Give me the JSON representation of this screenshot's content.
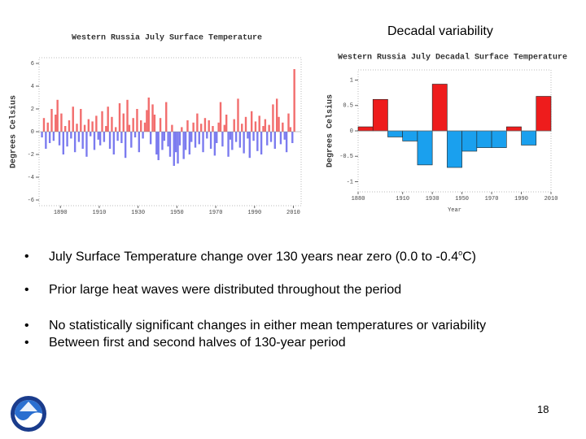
{
  "header": {
    "title": "Decadal variability"
  },
  "bullets": [
    [
      "July Surface Temperature change over 130 years near zero (0.0 to -0.4",
      "o",
      "C)"
    ],
    "Prior large heat waves were distributed throughout the period",
    "No statistically significant changes in either mean temperatures or variability",
    "Between first and second halves of 130-year period"
  ],
  "page_number": "18",
  "chart_data": [
    {
      "type": "bar",
      "title": "Western Russia July Surface Temperature",
      "y_label": "Degrees Celsius",
      "x": [
        1880,
        1881,
        1882,
        1883,
        1884,
        1885,
        1886,
        1887,
        1888,
        1889,
        1890,
        1891,
        1892,
        1893,
        1894,
        1895,
        1896,
        1897,
        1898,
        1899,
        1900,
        1901,
        1902,
        1903,
        1904,
        1905,
        1906,
        1907,
        1908,
        1909,
        1910,
        1911,
        1912,
        1913,
        1914,
        1915,
        1916,
        1917,
        1918,
        1919,
        1920,
        1921,
        1922,
        1923,
        1924,
        1925,
        1926,
        1927,
        1928,
        1929,
        1930,
        1931,
        1932,
        1933,
        1934,
        1935,
        1936,
        1937,
        1938,
        1939,
        1940,
        1941,
        1942,
        1943,
        1944,
        1945,
        1946,
        1947,
        1948,
        1949,
        1950,
        1951,
        1952,
        1953,
        1954,
        1955,
        1956,
        1957,
        1958,
        1959,
        1960,
        1961,
        1962,
        1963,
        1964,
        1965,
        1966,
        1967,
        1968,
        1969,
        1970,
        1971,
        1972,
        1973,
        1974,
        1975,
        1976,
        1977,
        1978,
        1979,
        1980,
        1981,
        1982,
        1983,
        1984,
        1985,
        1986,
        1987,
        1988,
        1989,
        1990,
        1991,
        1992,
        1993,
        1994,
        1995,
        1996,
        1997,
        1998,
        1999,
        2000,
        2001,
        2002,
        2003,
        2004,
        2005,
        2006,
        2007,
        2008,
        2009,
        2010
      ],
      "values": [
        -0.5,
        1.2,
        -1.5,
        0.8,
        -1.0,
        2.0,
        -0.8,
        1.5,
        2.8,
        -1.2,
        1.6,
        -2.0,
        0.5,
        -1.3,
        1.0,
        -0.6,
        2.2,
        -1.8,
        0.7,
        -0.9,
        2.0,
        -1.5,
        0.6,
        -2.2,
        1.1,
        -0.4,
        0.9,
        -1.6,
        1.4,
        -0.7,
        -1.2,
        1.8,
        -0.9,
        0.5,
        2.2,
        -1.5,
        1.3,
        -2.0,
        0.4,
        -0.8,
        2.5,
        -1.0,
        1.6,
        -2.3,
        2.8,
        0.6,
        -1.4,
        1.2,
        -0.5,
        2.0,
        -1.8,
        1.0,
        -0.6,
        0.8,
        1.9,
        3.0,
        -1.1,
        2.4,
        1.5,
        -2.0,
        -2.5,
        1.2,
        -1.6,
        -0.8,
        2.6,
        -1.3,
        -2.2,
        0.6,
        -3.0,
        -1.8,
        -2.8,
        -1.2,
        0.4,
        -2.4,
        -1.6,
        1.0,
        -2.0,
        -0.9,
        0.8,
        -1.4,
        1.6,
        -1.1,
        0.7,
        -1.8,
        1.2,
        -0.6,
        1.0,
        -1.5,
        0.5,
        -2.1,
        -1.0,
        0.8,
        2.6,
        -1.3,
        0.6,
        1.5,
        -2.2,
        -0.7,
        -1.6,
        1.1,
        -0.9,
        2.9,
        -1.4,
        0.7,
        -1.9,
        1.3,
        -0.6,
        -2.3,
        1.8,
        -0.8,
        0.9,
        -1.7,
        1.4,
        -2.0,
        0.5,
        1.1,
        -1.2,
        0.6,
        -0.9,
        2.4,
        -1.5,
        2.9,
        1.3,
        -1.1,
        0.8,
        -0.7,
        -1.8,
        1.6,
        0.4,
        -1.0,
        5.5
      ],
      "positive_color": "#f26d6d",
      "negative_color": "#7b7bef",
      "xlim": [
        1879,
        2014
      ],
      "xticks": [
        1890,
        1910,
        1930,
        1950,
        1970,
        1990,
        2010
      ],
      "ylim": [
        -6.5,
        6.5
      ],
      "yticks": [
        6,
        4,
        2,
        0,
        -2,
        -4,
        -6
      ]
    },
    {
      "type": "bar",
      "title": "Western Russia July Decadal Surface Temperature",
      "y_label": "Degrees Celsius",
      "x_label": "Year",
      "x": [
        1880,
        1890,
        1900,
        1910,
        1920,
        1930,
        1940,
        1950,
        1960,
        1970,
        1980,
        1990,
        2000
      ],
      "values": [
        0.08,
        0.62,
        -0.12,
        -0.2,
        -0.67,
        0.92,
        -0.72,
        -0.4,
        -0.33,
        -0.33,
        0.08,
        -0.28,
        0.68
      ],
      "positive_color": "#ee1c1c",
      "negative_color": "#1aa0ee",
      "xlim": [
        1880,
        2010
      ],
      "xticks": [
        1880,
        1910,
        1930,
        1950,
        1970,
        1990,
        2010
      ],
      "ylim": [
        -1.2,
        1.2
      ],
      "yticks": [
        1,
        0.5,
        0,
        -0.5,
        -1
      ]
    }
  ]
}
